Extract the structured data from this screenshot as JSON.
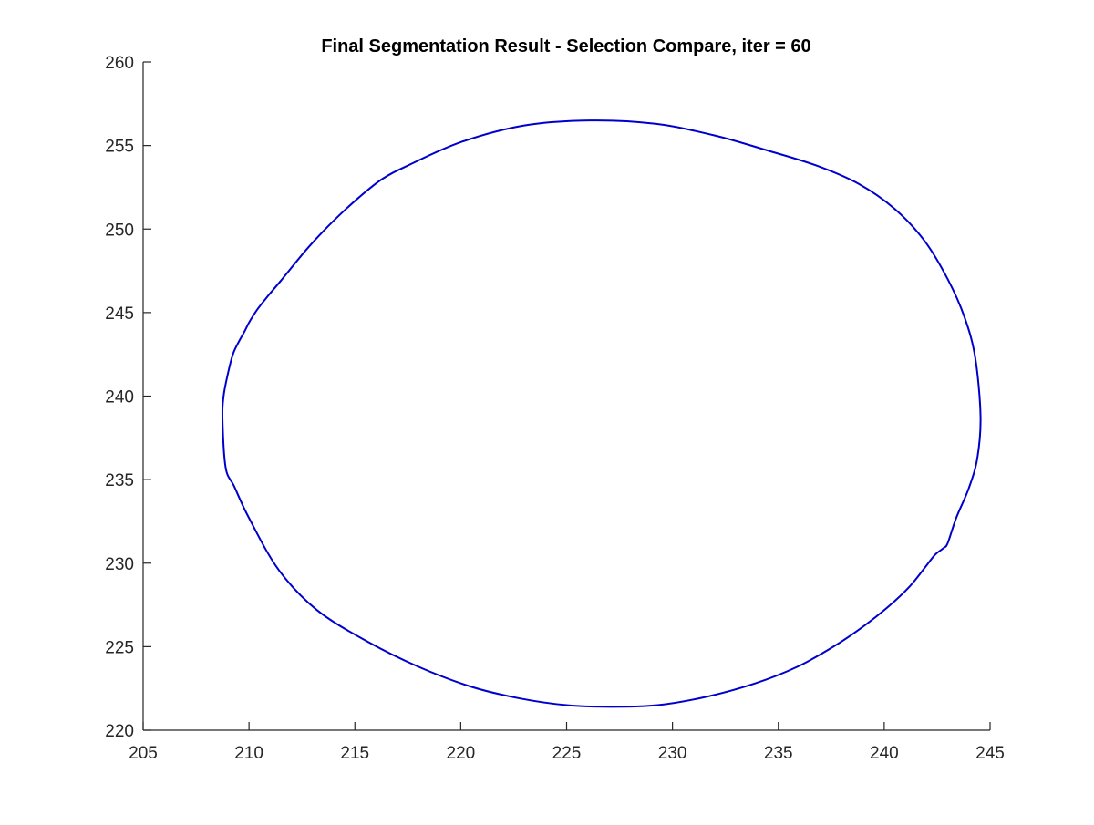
{
  "chart_data": {
    "type": "line",
    "title": "Final Segmentation Result - Selection Compare,  iter = 60",
    "xlabel": "",
    "ylabel": "",
    "xlim": [
      205,
      245
    ],
    "ylim": [
      220,
      260
    ],
    "xticks": [
      205,
      210,
      215,
      220,
      225,
      230,
      235,
      240,
      245
    ],
    "yticks": [
      220,
      225,
      230,
      235,
      240,
      245,
      250,
      255,
      260
    ],
    "grid": false,
    "box": false,
    "colors": {
      "line": "#0000cd",
      "axis": "#262626",
      "title": "#000000"
    },
    "series": [
      {
        "closed": true,
        "x": [
          226.1,
          229.2,
          232.0,
          234.5,
          236.8,
          238.8,
          240.5,
          241.9,
          243.0,
          243.8,
          244.3,
          244.55,
          244.4,
          244.0,
          243.4,
          243.0,
          242.8,
          242.4,
          241.9,
          241.2,
          240.2,
          239.0,
          237.6,
          235.9,
          233.9,
          231.6,
          229.3,
          227.1,
          225.0,
          222.8,
          220.5,
          218.0,
          215.6,
          213.2,
          211.4,
          210.0,
          209.3,
          208.9,
          208.75,
          208.8,
          209.05,
          209.3,
          209.8,
          210.0,
          210.4,
          210.9,
          211.5,
          212.8,
          214.0,
          215.2,
          216.3,
          217.5,
          220.0,
          223.0
        ],
        "y": [
          256.5,
          256.3,
          255.6,
          254.7,
          253.8,
          252.7,
          251.2,
          249.3,
          247.0,
          244.7,
          242.3,
          238.8,
          236.3,
          234.5,
          232.7,
          231.2,
          230.9,
          230.5,
          229.7,
          228.6,
          227.4,
          226.2,
          225.0,
          223.8,
          222.8,
          222.0,
          221.5,
          221.4,
          221.5,
          221.9,
          222.6,
          223.8,
          225.3,
          227.2,
          229.6,
          232.7,
          234.6,
          235.7,
          238.5,
          240.0,
          241.6,
          242.7,
          243.9,
          244.4,
          245.2,
          246.0,
          246.9,
          248.9,
          250.5,
          251.9,
          253.0,
          253.8,
          255.2,
          256.2
        ]
      }
    ]
  }
}
